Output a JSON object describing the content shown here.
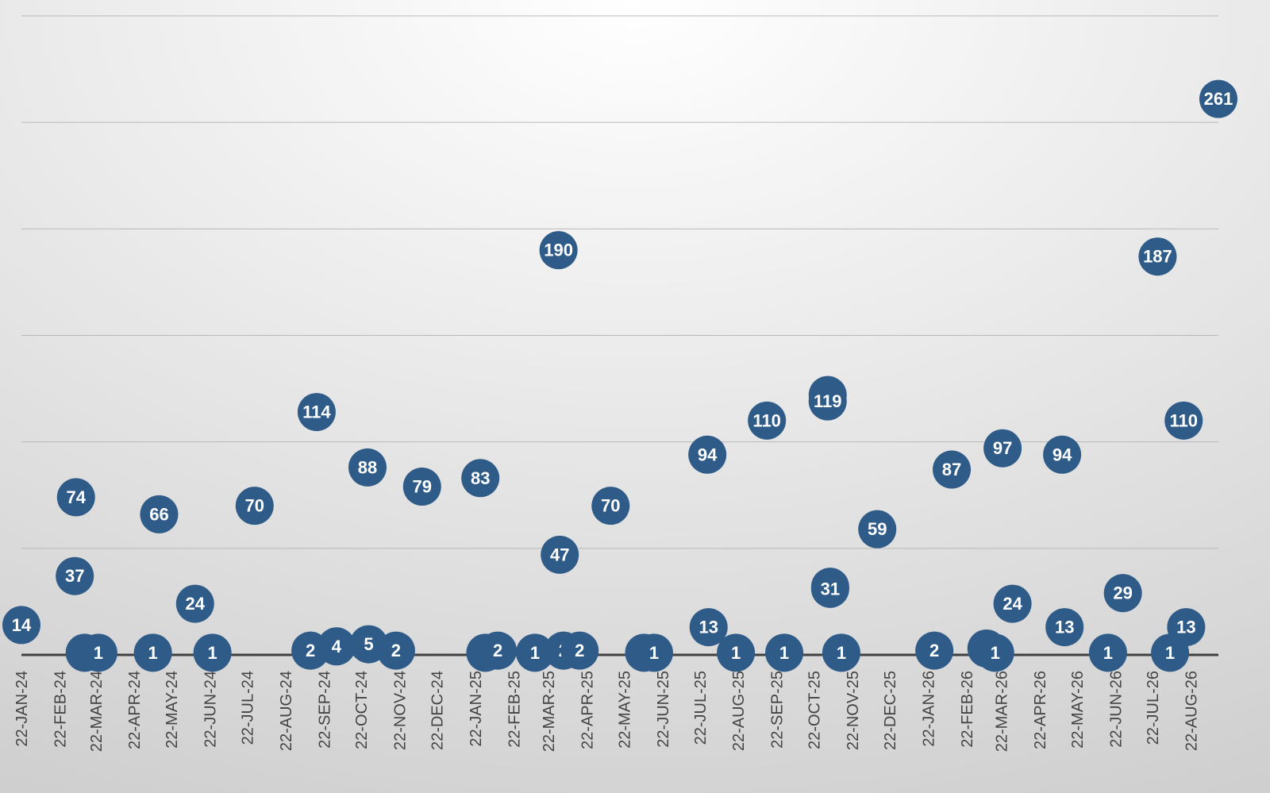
{
  "chart_data": {
    "type": "scatter",
    "x": [
      "2024-01-22",
      "2024-03-06",
      "2024-03-05",
      "2024-03-13",
      "2024-03-24",
      "2024-05-07",
      "2024-05-12",
      "2024-06-10",
      "2024-06-24",
      "2024-07-28",
      "2024-09-11",
      "2024-09-16",
      "2024-10-02",
      "2024-10-27",
      "2024-10-28",
      "2024-11-19",
      "2024-12-10",
      "2025-01-26",
      "2025-01-30",
      "2025-02-09",
      "2025-03-11",
      "2025-03-30",
      "2025-03-31",
      "2025-04-03",
      "2025-04-16",
      "2025-05-11",
      "2025-06-07",
      "2025-06-15",
      "2025-07-28",
      "2025-07-29",
      "2025-08-20",
      "2025-09-14",
      "2025-09-28",
      "2025-11-02",
      "2025-11-02",
      "2025-11-04",
      "2025-11-04",
      "2025-11-13",
      "2025-12-12",
      "2026-01-27",
      "2026-02-10",
      "2026-03-10",
      "2026-03-17",
      "2026-03-23",
      "2026-03-31",
      "2026-05-10",
      "2026-05-12",
      "2026-06-16",
      "2026-06-28",
      "2026-07-26",
      "2026-08-05",
      "2026-08-16",
      "2026-08-18",
      "2026-09-13"
    ],
    "values": [
      14,
      74,
      37,
      1,
      1,
      1,
      66,
      24,
      1,
      70,
      2,
      114,
      4,
      88,
      5,
      2,
      79,
      83,
      1,
      2,
      1,
      190,
      47,
      2,
      2,
      70,
      1,
      1,
      94,
      13,
      1,
      110,
      1,
      122,
      119,
      32,
      31,
      1,
      59,
      2,
      87,
      3,
      1,
      97,
      24,
      94,
      13,
      1,
      29,
      187,
      1,
      110,
      13,
      261
    ],
    "color": "#2f5b88",
    "xlim": [
      "2024-01-22",
      "2026-09-13"
    ],
    "xticks": [
      {
        "value": "2024-01-22",
        "label": "22-JAN-24"
      },
      {
        "value": "2024-02-22",
        "label": "22-FEB-24"
      },
      {
        "value": "2024-03-22",
        "label": "22-MAR-24"
      },
      {
        "value": "2024-04-22",
        "label": "22-APR-24"
      },
      {
        "value": "2024-05-22",
        "label": "22-MAY-24"
      },
      {
        "value": "2024-06-22",
        "label": "22-JUN-24"
      },
      {
        "value": "2024-07-22",
        "label": "22-JUL-24"
      },
      {
        "value": "2024-08-22",
        "label": "22-AUG-24"
      },
      {
        "value": "2024-09-22",
        "label": "22-SEP-24"
      },
      {
        "value": "2024-10-22",
        "label": "22-OCT-24"
      },
      {
        "value": "2024-11-22",
        "label": "22-NOV-24"
      },
      {
        "value": "2024-12-22",
        "label": "22-DEC-24"
      },
      {
        "value": "2025-01-22",
        "label": "22-JAN-25"
      },
      {
        "value": "2025-02-22",
        "label": "22-FEB-25"
      },
      {
        "value": "2025-03-22",
        "label": "22-MAR-25"
      },
      {
        "value": "2025-04-22",
        "label": "22-APR-25"
      },
      {
        "value": "2025-05-22",
        "label": "22-MAY-25"
      },
      {
        "value": "2025-06-22",
        "label": "22-JUN-25"
      },
      {
        "value": "2025-07-22",
        "label": "22-JUL-25"
      },
      {
        "value": "2025-08-22",
        "label": "22-AUG-25"
      },
      {
        "value": "2025-09-22",
        "label": "22-SEP-25"
      },
      {
        "value": "2025-10-22",
        "label": "22-OCT-25"
      },
      {
        "value": "2025-11-22",
        "label": "22-NOV-25"
      },
      {
        "value": "2025-12-22",
        "label": "22-DEC-25"
      },
      {
        "value": "2026-01-22",
        "label": "22-JAN-26"
      },
      {
        "value": "2026-02-22",
        "label": "22-FEB-26"
      },
      {
        "value": "2026-03-22",
        "label": "22-MAR-26"
      },
      {
        "value": "2026-04-22",
        "label": "22-APR-26"
      },
      {
        "value": "2026-05-22",
        "label": "22-MAY-26"
      },
      {
        "value": "2026-06-22",
        "label": "22-JUN-26"
      },
      {
        "value": "2026-07-22",
        "label": "22-JUL-26"
      },
      {
        "value": "2026-08-22",
        "label": "22-AUG-26"
      }
    ],
    "ylim": [
      0,
      300
    ],
    "yticks": [
      0,
      50,
      100,
      150,
      200,
      250,
      300
    ],
    "grid": true
  }
}
